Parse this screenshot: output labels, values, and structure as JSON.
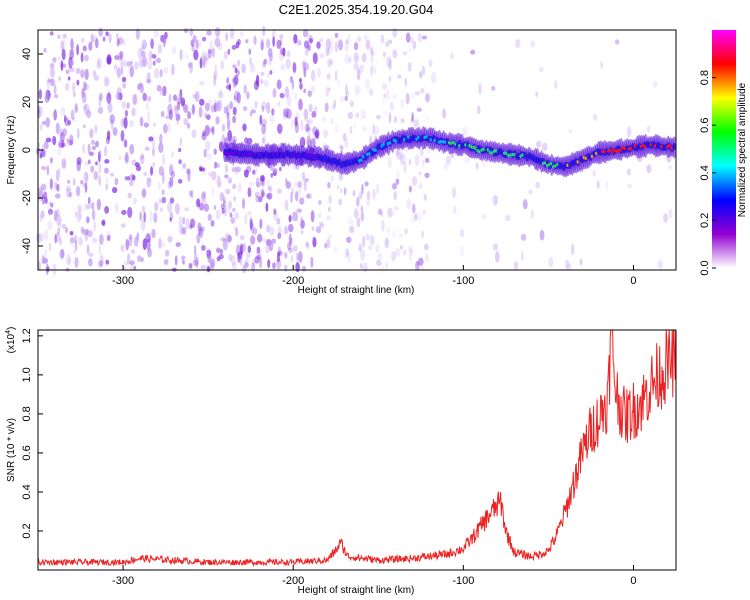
{
  "title": "C2E1.2025.354.19.20.G04",
  "chart_data": [
    {
      "type": "heatmap",
      "xlabel": "Height of straight line (km)",
      "ylabel": "Frequency (Hz)",
      "xlim": [
        -350,
        25
      ],
      "ylim": [
        -50,
        50
      ],
      "xticks": [
        -300,
        -200,
        -100,
        0
      ],
      "yticks": [
        -40,
        -20,
        0,
        20,
        40
      ],
      "colorbar": {
        "label": "Normalized spectral amplitude",
        "range": [
          0,
          1
        ],
        "ticks": [
          "0.0",
          "0.2",
          "0.4",
          "0.6",
          "0.8"
        ],
        "colors": [
          "#ffffff",
          "#9400d3",
          "#0000ff",
          "#00ffff",
          "#00ff00",
          "#ffff00",
          "#ff0000",
          "#ff00ff"
        ]
      },
      "ridge_line": {
        "x": [
          -240,
          -220,
          -200,
          -185,
          -170,
          -160,
          -150,
          -140,
          -130,
          -120,
          -110,
          -100,
          -90,
          -80,
          -70,
          -60,
          -50,
          -40,
          -30,
          -20,
          -10,
          0,
          10,
          25
        ],
        "y": [
          -1,
          -2,
          -2,
          -3,
          -6,
          -4,
          1,
          4,
          5,
          5,
          3,
          2,
          0,
          -1,
          -2,
          -3,
          -6,
          -7,
          -4,
          -1,
          0,
          1,
          2,
          1
        ],
        "amplitude": [
          0.22,
          0.24,
          0.25,
          0.3,
          0.38,
          0.45,
          0.48,
          0.5,
          0.5,
          0.52,
          0.55,
          0.58,
          0.6,
          0.58,
          0.56,
          0.55,
          0.6,
          0.7,
          0.78,
          0.85,
          0.9,
          0.95,
          0.9,
          0.85
        ]
      },
      "noise_regions": [
        {
          "x_range": [
            -350,
            -185
          ],
          "level": "high"
        },
        {
          "x_range": [
            -185,
            -120
          ],
          "level": "medium"
        },
        {
          "x_range": [
            -120,
            25
          ],
          "level": "low"
        }
      ]
    },
    {
      "type": "line",
      "xlabel": "Height of straight line (km)",
      "ylabel": "SNR (10 * v/v)",
      "scale_label": "(x10",
      "scale_exponent": "4",
      "xlim": [
        -350,
        25
      ],
      "ylim": [
        0,
        1.23
      ],
      "xticks": [
        -300,
        -200,
        -100,
        0
      ],
      "yticks": [
        0.2,
        0.4,
        0.6,
        0.8,
        1.0,
        1.2
      ],
      "color": "#ee2222",
      "series": [
        {
          "x": [
            -350,
            -300,
            -290,
            -250,
            -200,
            -180,
            -175,
            -172,
            -168,
            -150,
            -130,
            -110,
            -100,
            -95,
            -90,
            -85,
            -80,
            -78,
            -75,
            -70,
            -65,
            -60,
            -55,
            -50,
            -45,
            -40,
            -35,
            -30,
            -25,
            -20,
            -15,
            -13,
            -10,
            -5,
            0,
            5,
            10,
            15,
            20,
            25
          ],
          "y": [
            0.04,
            0.04,
            0.06,
            0.04,
            0.04,
            0.05,
            0.1,
            0.14,
            0.07,
            0.05,
            0.06,
            0.08,
            0.11,
            0.16,
            0.22,
            0.28,
            0.33,
            0.35,
            0.2,
            0.09,
            0.08,
            0.07,
            0.08,
            0.1,
            0.18,
            0.3,
            0.45,
            0.6,
            0.72,
            0.78,
            0.88,
            1.2,
            0.9,
            0.78,
            0.82,
            0.86,
            0.94,
            1.0,
            1.05,
            1.1
          ]
        }
      ]
    }
  ]
}
